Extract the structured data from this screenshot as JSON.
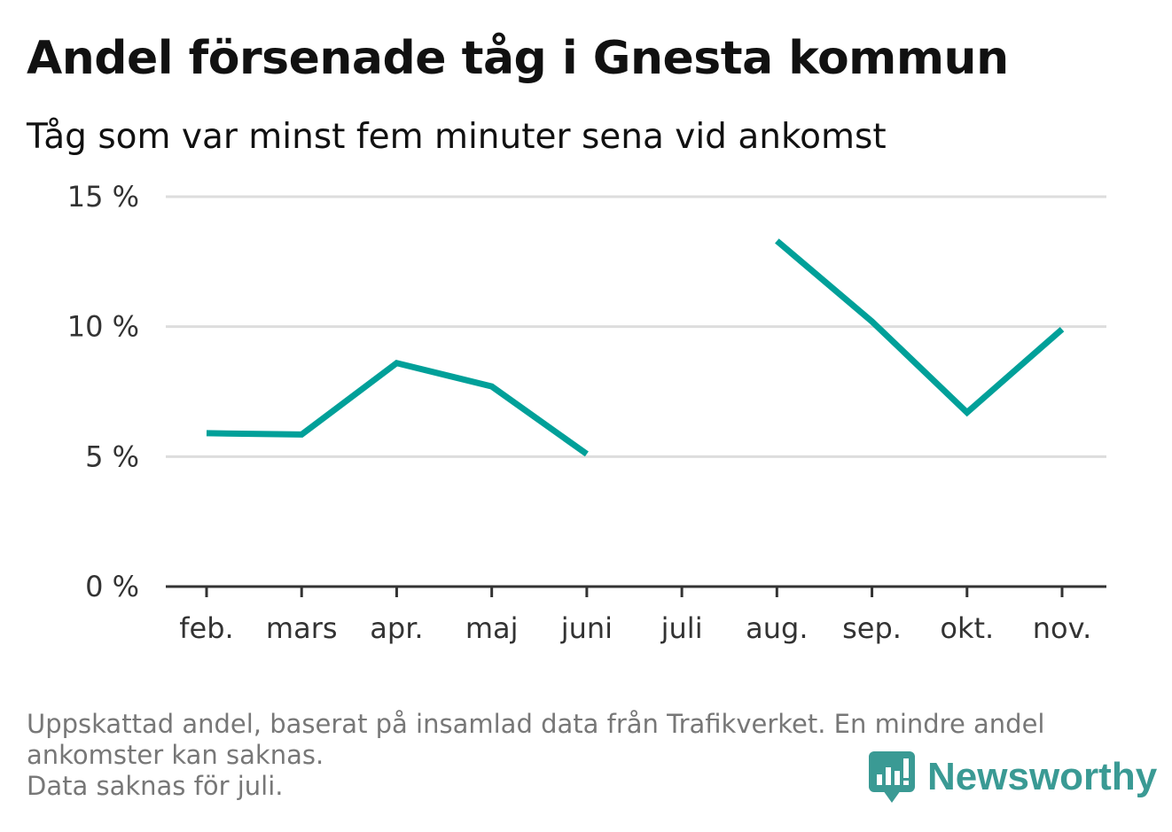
{
  "title": "Andel försenade tåg i Gnesta kommun",
  "subtitle": "Tåg som var minst fem minuter sena vid ankomst",
  "chart_data": {
    "type": "line",
    "categories": [
      "feb.",
      "mars",
      "apr.",
      "maj",
      "juni",
      "juli",
      "aug.",
      "sep.",
      "okt.",
      "nov."
    ],
    "series": [
      {
        "values": [
          5.9,
          5.85,
          8.6,
          7.7,
          5.1,
          null,
          13.3,
          10.2,
          6.7,
          9.9
        ]
      }
    ],
    "ylim": [
      0,
      15
    ],
    "yticks": [
      0,
      5,
      10,
      15
    ],
    "ytick_labels": [
      "0 %",
      "5 %",
      "10 %",
      "15 %"
    ],
    "grid": true,
    "line_color": "#00a099",
    "grid_color": "#dddddd",
    "axis_color": "#333333"
  },
  "footnote": {
    "line1": "Uppskattad andel, baserat på insamlad data från Trafikverket. En mindre andel ankomster kan saknas.",
    "line2": "Data saknas för juli."
  },
  "brand": {
    "name": "Newsworthy",
    "color": "#3a9a94",
    "icon": "newsworthy-logo-icon"
  }
}
